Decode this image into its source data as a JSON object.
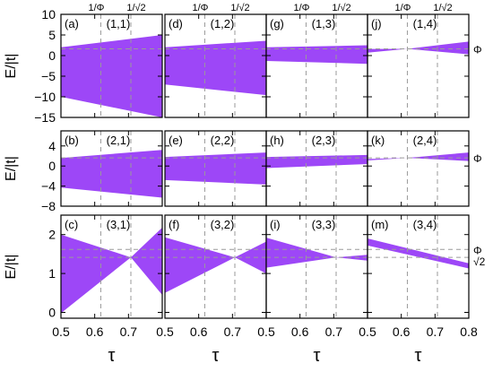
{
  "chart_data": {
    "type": "area",
    "fill_color": "#9d47f7",
    "guide_color": "#9a9a9a",
    "x_axis": {
      "label": "τ",
      "range": [
        0.5,
        0.8
      ],
      "ticks": [
        0.5,
        0.6,
        0.7,
        0.8
      ],
      "tick_labels": [
        "0.5",
        "0.6",
        "0.7",
        "0.5",
        "0.6",
        "0.7",
        "0.5",
        "0.6",
        "0.7",
        "0.5",
        "0.6",
        "0.7",
        "0.8"
      ]
    },
    "top_labels": [
      "1/Φ",
      "1/√2"
    ],
    "vlines_x": [
      0.618,
      0.7071
    ],
    "rows": [
      {
        "ylabel": "E/|t|",
        "ylim": [
          -15,
          10
        ],
        "yticks": [
          -15,
          -10,
          -5,
          0,
          5,
          10
        ],
        "ytick_labels": [
          "−15",
          "−10",
          "−5",
          "0",
          "5",
          "10"
        ],
        "hline_y": [
          1.618
        ],
        "right_labels": [
          {
            "text": "Φ",
            "y": 1.618
          }
        ]
      },
      {
        "ylabel": "E/|t|",
        "ylim": [
          -8,
          7
        ],
        "yticks": [
          -8,
          -4,
          0,
          4
        ],
        "ytick_labels": [
          "−8",
          "−4",
          "0",
          "4"
        ],
        "hline_y": [
          1.618
        ],
        "right_labels": [
          {
            "text": "Φ",
            "y": 1.618
          }
        ]
      },
      {
        "ylabel": "E/|t|",
        "ylim": [
          -0.15,
          2.5
        ],
        "yticks": [
          0,
          1,
          2
        ],
        "ytick_labels": [
          "0",
          "1",
          "2"
        ],
        "hline_y": [
          1.618,
          1.414
        ],
        "right_labels": [
          {
            "text": "Φ",
            "y": 1.618
          },
          {
            "text": "√2",
            "y": 1.414
          }
        ]
      }
    ],
    "panels": [
      {
        "tag": "(a)",
        "label": "(1,1)",
        "row": 0,
        "col": 0,
        "upper": [
          [
            0.5,
            2
          ],
          [
            0.8,
            5
          ]
        ],
        "lower": [
          [
            0.5,
            -10
          ],
          [
            0.8,
            -15
          ]
        ]
      },
      {
        "tag": "(d)",
        "label": "(1,2)",
        "row": 0,
        "col": 1,
        "upper": [
          [
            0.5,
            2
          ],
          [
            0.8,
            3.6
          ]
        ],
        "lower": [
          [
            0.5,
            -7
          ],
          [
            0.8,
            -9.6
          ]
        ]
      },
      {
        "tag": "(g)",
        "label": "(1,3)",
        "row": 0,
        "col": 2,
        "upper": [
          [
            0.5,
            2
          ],
          [
            0.8,
            2.5
          ]
        ],
        "lower": [
          [
            0.5,
            -1.3
          ],
          [
            0.8,
            -2
          ]
        ]
      },
      {
        "tag": "(j)",
        "label": "(1,4)",
        "row": 0,
        "col": 3,
        "upper": [
          [
            0.5,
            1.6
          ],
          [
            0.618,
            1.618
          ],
          [
            0.8,
            3.4
          ]
        ],
        "lower": [
          [
            0.5,
            0.7
          ],
          [
            0.618,
            1.618
          ],
          [
            0.8,
            0.3
          ]
        ]
      },
      {
        "tag": "(b)",
        "label": "(2,1)",
        "row": 1,
        "col": 0,
        "upper": [
          [
            0.5,
            1.6
          ],
          [
            0.8,
            3.2
          ]
        ],
        "lower": [
          [
            0.5,
            -4.3
          ],
          [
            0.8,
            -6.3
          ]
        ]
      },
      {
        "tag": "(e)",
        "label": "(2,2)",
        "row": 1,
        "col": 1,
        "upper": [
          [
            0.5,
            1.8
          ],
          [
            0.8,
            2.7
          ]
        ],
        "lower": [
          [
            0.5,
            -2.8
          ],
          [
            0.8,
            -3.7
          ]
        ]
      },
      {
        "tag": "(h)",
        "label": "(2,3)",
        "row": 1,
        "col": 2,
        "upper": [
          [
            0.5,
            1.8
          ],
          [
            0.8,
            2.2
          ]
        ],
        "lower": [
          [
            0.5,
            -0.4
          ],
          [
            0.8,
            0.4
          ]
        ]
      },
      {
        "tag": "(k)",
        "label": "(2,4)",
        "row": 1,
        "col": 3,
        "upper": [
          [
            0.5,
            1.4
          ],
          [
            0.618,
            1.618
          ],
          [
            0.8,
            2.7
          ]
        ],
        "lower": [
          [
            0.5,
            1.1
          ],
          [
            0.618,
            1.618
          ],
          [
            0.8,
            1.0
          ]
        ]
      },
      {
        "tag": "(c)",
        "label": "(3,1)",
        "row": 2,
        "col": 0,
        "upper": [
          [
            0.5,
            2.0
          ],
          [
            0.7071,
            1.414
          ],
          [
            0.8,
            2.18
          ]
        ],
        "lower": [
          [
            0.5,
            -0.02
          ],
          [
            0.7071,
            1.414
          ],
          [
            0.8,
            0.45
          ]
        ]
      },
      {
        "tag": "(f)",
        "label": "(3,2)",
        "row": 2,
        "col": 1,
        "upper": [
          [
            0.5,
            1.93
          ],
          [
            0.7071,
            1.414
          ],
          [
            0.8,
            1.82
          ]
        ],
        "lower": [
          [
            0.5,
            0.5
          ],
          [
            0.7071,
            1.414
          ],
          [
            0.8,
            1.0
          ]
        ]
      },
      {
        "tag": "(i)",
        "label": "(3,3)",
        "row": 2,
        "col": 2,
        "upper": [
          [
            0.5,
            1.92
          ],
          [
            0.7071,
            1.414
          ],
          [
            0.8,
            1.48
          ]
        ],
        "lower": [
          [
            0.5,
            1.15
          ],
          [
            0.7071,
            1.414
          ],
          [
            0.8,
            1.33
          ]
        ]
      },
      {
        "tag": "(m)",
        "label": "(3,4)",
        "row": 2,
        "col": 3,
        "upper": [
          [
            0.5,
            1.9
          ],
          [
            0.8,
            1.26
          ]
        ],
        "lower": [
          [
            0.5,
            1.72
          ],
          [
            0.8,
            1.13
          ]
        ]
      }
    ]
  }
}
